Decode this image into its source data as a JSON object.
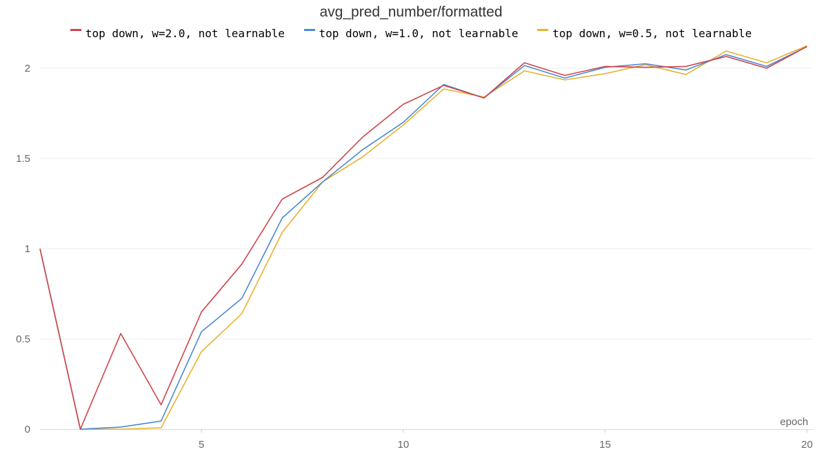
{
  "chart_data": {
    "type": "line",
    "title": "avg_pred_number/formatted",
    "xlabel": "epoch",
    "ylabel": "",
    "xlim": [
      1,
      20.15
    ],
    "ylim": [
      0,
      2.2
    ],
    "xticks": [
      5,
      10,
      15,
      20
    ],
    "yticks": [
      0,
      0.5,
      1,
      1.5,
      2
    ],
    "ytick_labels": [
      "0",
      "0.5",
      "1",
      "1.5",
      "2"
    ],
    "grid": "horizontal",
    "legend_position": "top-center",
    "x": [
      1,
      2,
      3,
      4,
      5,
      6,
      7,
      8,
      9,
      10,
      11,
      12,
      13,
      14,
      15,
      16,
      17,
      18,
      19,
      20
    ],
    "series": [
      {
        "name": "top down, w=2.0, not learnable",
        "color": "#d0444a",
        "values": [
          1.0,
          0.0,
          0.53,
          0.135,
          0.65,
          0.915,
          1.275,
          1.395,
          1.62,
          1.8,
          1.905,
          1.835,
          2.03,
          1.96,
          2.01,
          2.005,
          2.01,
          2.065,
          2.0,
          2.12
        ]
      },
      {
        "name": "top down, w=1.0, not learnable",
        "color": "#4a8ad6",
        "values": [
          1.0,
          0.0,
          0.012,
          0.045,
          0.54,
          0.725,
          1.17,
          1.37,
          1.55,
          1.7,
          1.91,
          1.835,
          2.015,
          1.945,
          2.005,
          2.025,
          1.99,
          2.075,
          2.01,
          2.12
        ]
      },
      {
        "name": "top down, w=0.5, not learnable",
        "color": "#e8b12b",
        "values": [
          1.0,
          0.0,
          0.0,
          0.008,
          0.43,
          0.64,
          1.09,
          1.37,
          1.51,
          1.685,
          1.885,
          1.84,
          1.985,
          1.935,
          1.97,
          2.02,
          1.965,
          2.095,
          2.03,
          2.125
        ]
      }
    ]
  }
}
